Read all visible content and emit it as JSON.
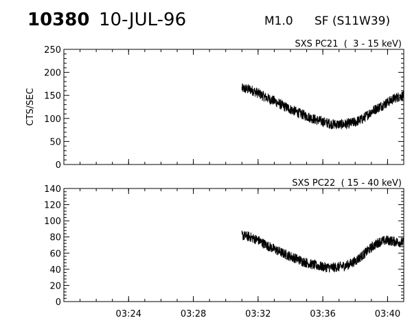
{
  "header": {
    "event_id": "10380",
    "date": "10-JUL-96",
    "flare_class": "M1.0",
    "location": "SF (S11W39)"
  },
  "chart_data": [
    {
      "type": "line",
      "title": "SXS PC21  (  3 - 15 keV)",
      "ylabel": "CTS/SEC",
      "xlabel": "",
      "ylim": [
        0,
        250
      ],
      "yticks": [
        "0",
        "50",
        "100",
        "150",
        "200",
        "250"
      ],
      "xlim": [
        "03:20",
        "03:41"
      ],
      "xticks": [
        "03:24",
        "03:28",
        "03:32",
        "03:36",
        "03:40"
      ],
      "series": [
        {
          "x": [
            "03:31",
            "03:31:30",
            "03:32",
            "03:32:30",
            "03:33",
            "03:33:30",
            "03:34",
            "03:34:30",
            "03:35",
            "03:35:30",
            "03:36",
            "03:36:30",
            "03:37",
            "03:37:30",
            "03:38",
            "03:38:30",
            "03:39",
            "03:39:30",
            "03:40",
            "03:40:30",
            "03:41"
          ],
          "values": [
            165,
            163,
            155,
            145,
            138,
            128,
            120,
            112,
            105,
            98,
            93,
            88,
            87,
            88,
            92,
            100,
            115,
            125,
            135,
            145,
            150
          ]
        }
      ]
    },
    {
      "type": "line",
      "title": "SXS PC22  ( 15 - 40 keV)",
      "ylabel": "",
      "xlabel": "",
      "ylim": [
        0,
        140
      ],
      "yticks": [
        "0",
        "20",
        "40",
        "60",
        "80",
        "100",
        "120",
        "140"
      ],
      "xlim": [
        "03:20",
        "03:41"
      ],
      "xticks": [
        "03:24",
        "03:28",
        "03:32",
        "03:36",
        "03:40"
      ],
      "series": [
        {
          "x": [
            "03:31",
            "03:31:30",
            "03:32",
            "03:32:30",
            "03:33",
            "03:33:30",
            "03:34",
            "03:34:30",
            "03:35",
            "03:35:30",
            "03:36",
            "03:36:30",
            "03:37",
            "03:37:30",
            "03:38",
            "03:38:30",
            "03:39",
            "03:39:30",
            "03:40",
            "03:40:30",
            "03:41"
          ],
          "values": [
            82,
            80,
            76,
            70,
            65,
            60,
            56,
            52,
            48,
            45,
            43,
            42,
            43,
            45,
            50,
            58,
            67,
            74,
            76,
            74,
            73
          ]
        }
      ]
    }
  ]
}
